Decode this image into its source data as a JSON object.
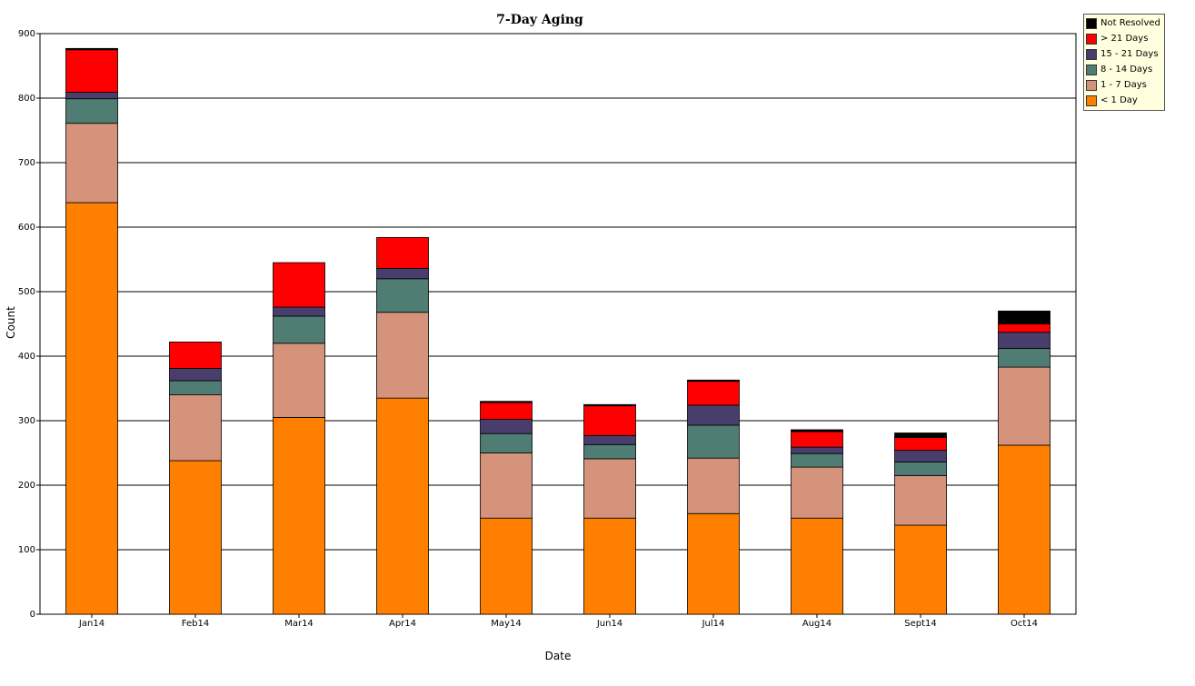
{
  "chart_data": {
    "type": "bar",
    "stacked": true,
    "title": "7-Day Aging",
    "xlabel": "Date",
    "ylabel": "Count",
    "ylim": [
      0,
      900
    ],
    "yticks": [
      0,
      100,
      200,
      300,
      400,
      500,
      600,
      700,
      800,
      900
    ],
    "grid": true,
    "legend_position": "top-right",
    "categories": [
      "Jan14",
      "Feb14",
      "Mar14",
      "Apr14",
      "May14",
      "Jun14",
      "Jul14",
      "Aug14",
      "Sept14",
      "Oct14"
    ],
    "series": [
      {
        "name": "< 1 Day",
        "color": "#ff8000",
        "values": [
          638,
          238,
          305,
          335,
          149,
          149,
          156,
          149,
          138,
          262
        ]
      },
      {
        "name": "1 - 7 Days",
        "color": "#d4937a",
        "values": [
          123,
          102,
          115,
          133,
          101,
          92,
          86,
          79,
          77,
          121
        ]
      },
      {
        "name": "8 - 14 Days",
        "color": "#4f7d73",
        "values": [
          38,
          22,
          42,
          52,
          30,
          22,
          51,
          21,
          21,
          29
        ]
      },
      {
        "name": "15 - 21 Days",
        "color": "#483d6b",
        "values": [
          10,
          19,
          14,
          16,
          22,
          14,
          31,
          10,
          18,
          25
        ]
      },
      {
        "name": "> 21 Days",
        "color": "#ff0000",
        "values": [
          66,
          41,
          69,
          48,
          26,
          46,
          37,
          24,
          20,
          13
        ]
      },
      {
        "name": "Not Resolved",
        "color": "#000000",
        "values": [
          2,
          0,
          0,
          0,
          2,
          2,
          2,
          3,
          7,
          20
        ]
      }
    ]
  }
}
